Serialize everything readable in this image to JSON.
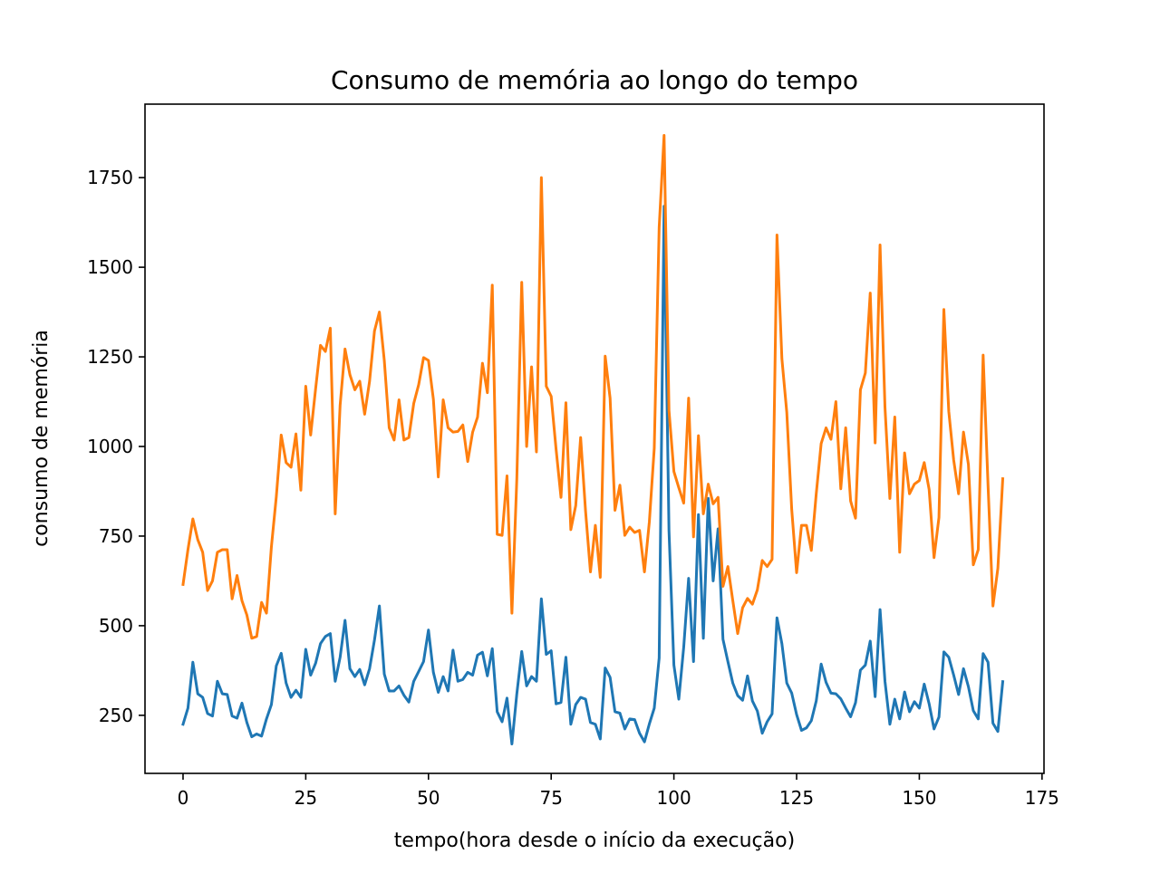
{
  "chart_data": {
    "type": "line",
    "title": "Consumo de memória ao longo do tempo",
    "xlabel": "tempo(hora desde o início da execução)",
    "ylabel": "consumo de memória",
    "xlim": [
      -7.75,
      175.4
    ],
    "ylim": [
      88,
      1955
    ],
    "xticks": [
      0,
      25,
      50,
      75,
      100,
      125,
      150,
      175
    ],
    "yticks": [
      250,
      500,
      750,
      1000,
      1250,
      1500,
      1750
    ],
    "grid": false,
    "legend": "none",
    "series": [
      {
        "color": "#1f77b4",
        "x": [
          0,
          1,
          2,
          3,
          4,
          5,
          6,
          7,
          8,
          9,
          10,
          11,
          12,
          13,
          14,
          15,
          16,
          17,
          18,
          19,
          20,
          21,
          22,
          23,
          24,
          25,
          26,
          27,
          28,
          29,
          30,
          31,
          32,
          33,
          34,
          35,
          36,
          37,
          38,
          39,
          40,
          41,
          42,
          43,
          44,
          45,
          46,
          47,
          48,
          49,
          50,
          51,
          52,
          53,
          54,
          55,
          56,
          57,
          58,
          59,
          60,
          61,
          62,
          63,
          64,
          65,
          66,
          67,
          68,
          69,
          70,
          71,
          72,
          73,
          74,
          75,
          76,
          77,
          78,
          79,
          80,
          81,
          82,
          83,
          84,
          85,
          86,
          87,
          88,
          89,
          90,
          91,
          92,
          93,
          94,
          95,
          96,
          97,
          98,
          99,
          100,
          101,
          102,
          103,
          104,
          105,
          106,
          107,
          108,
          109,
          110,
          111,
          112,
          113,
          114,
          115,
          116,
          117,
          118,
          119,
          120,
          121,
          122,
          123,
          124,
          125,
          126,
          127,
          128,
          129,
          130,
          131,
          132,
          133,
          134,
          135,
          136,
          137,
          138,
          139,
          140,
          141,
          142,
          143,
          144,
          145,
          146,
          147,
          148,
          149,
          150,
          151,
          152,
          153,
          154,
          155,
          156,
          157,
          158,
          159,
          160,
          161,
          162,
          163,
          164,
          165,
          166,
          167
        ],
        "y": [
          225,
          270,
          398,
          310,
          300,
          255,
          248,
          345,
          310,
          308,
          248,
          242,
          284,
          230,
          190,
          198,
          192,
          240,
          280,
          388,
          423,
          340,
          300,
          320,
          300,
          434,
          362,
          395,
          450,
          470,
          478,
          345,
          412,
          515,
          380,
          358,
          378,
          335,
          380,
          460,
          555,
          365,
          318,
          318,
          332,
          306,
          287,
          345,
          372,
          400,
          488,
          370,
          314,
          358,
          318,
          432,
          345,
          350,
          370,
          362,
          418,
          426,
          360,
          436,
          260,
          232,
          298,
          170,
          310,
          428,
          332,
          358,
          345,
          575,
          420,
          430,
          282,
          286,
          412,
          225,
          280,
          300,
          295,
          230,
          225,
          184,
          382,
          356,
          260,
          256,
          212,
          240,
          238,
          200,
          176,
          226,
          270,
          410,
          1670,
          765,
          390,
          295,
          440,
          632,
          400,
          810,
          465,
          855,
          625,
          770,
          462,
          400,
          340,
          305,
          292,
          360,
          290,
          262,
          200,
          232,
          254,
          522,
          450,
          340,
          312,
          252,
          208,
          215,
          235,
          290,
          393,
          342,
          312,
          310,
          296,
          270,
          246,
          285,
          376,
          390,
          457,
          302,
          545,
          345,
          225,
          295,
          240,
          315,
          260,
          288,
          270,
          337,
          282,
          212,
          245,
          427,
          412,
          362,
          308,
          380,
          330,
          263,
          240,
          422,
          398,
          228,
          205,
          344
        ]
      },
      {
        "color": "#ff7f0e",
        "x": [
          0,
          1,
          2,
          3,
          4,
          5,
          6,
          7,
          8,
          9,
          10,
          11,
          12,
          13,
          14,
          15,
          16,
          17,
          18,
          19,
          20,
          21,
          22,
          23,
          24,
          25,
          26,
          27,
          28,
          29,
          30,
          31,
          32,
          33,
          34,
          35,
          36,
          37,
          38,
          39,
          40,
          41,
          42,
          43,
          44,
          45,
          46,
          47,
          48,
          49,
          50,
          51,
          52,
          53,
          54,
          55,
          56,
          57,
          58,
          59,
          60,
          61,
          62,
          63,
          64,
          65,
          66,
          67,
          68,
          69,
          70,
          71,
          72,
          73,
          74,
          75,
          76,
          77,
          78,
          79,
          80,
          81,
          82,
          83,
          84,
          85,
          86,
          87,
          88,
          89,
          90,
          91,
          92,
          93,
          94,
          95,
          96,
          97,
          98,
          99,
          100,
          101,
          102,
          103,
          104,
          105,
          106,
          107,
          108,
          109,
          110,
          111,
          112,
          113,
          114,
          115,
          116,
          117,
          118,
          119,
          120,
          121,
          122,
          123,
          124,
          125,
          126,
          127,
          128,
          129,
          130,
          131,
          132,
          133,
          134,
          135,
          136,
          137,
          138,
          139,
          140,
          141,
          142,
          143,
          144,
          145,
          146,
          147,
          148,
          149,
          150,
          151,
          152,
          153,
          154,
          155,
          156,
          157,
          158,
          159,
          160,
          161,
          162,
          163,
          164,
          165,
          166,
          167
        ],
        "y": [
          615,
          712,
          798,
          740,
          705,
          598,
          625,
          705,
          712,
          712,
          575,
          640,
          570,
          530,
          465,
          470,
          565,
          535,
          720,
          860,
          1032,
          955,
          942,
          1035,
          878,
          1168,
          1032,
          1160,
          1282,
          1265,
          1330,
          812,
          1115,
          1272,
          1200,
          1158,
          1182,
          1090,
          1182,
          1322,
          1375,
          1240,
          1052,
          1018,
          1130,
          1018,
          1025,
          1120,
          1172,
          1248,
          1240,
          1132,
          915,
          1130,
          1052,
          1040,
          1042,
          1060,
          958,
          1040,
          1082,
          1232,
          1150,
          1450,
          755,
          752,
          918,
          535,
          910,
          1458,
          1000,
          1222,
          985,
          1750,
          1168,
          1140,
          992,
          858,
          1122,
          768,
          835,
          1025,
          820,
          650,
          780,
          635,
          1252,
          1135,
          822,
          892,
          752,
          775,
          760,
          766,
          650,
          790,
          995,
          1612,
          1868,
          1100,
          930,
          885,
          842,
          1135,
          748,
          1030,
          812,
          895,
          840,
          858,
          610,
          665,
          570,
          478,
          550,
          576,
          560,
          600,
          682,
          665,
          685,
          1590,
          1245,
          1095,
          825,
          648,
          780,
          780,
          710,
          868,
          1008,
          1052,
          1020,
          1125,
          882,
          1052,
          848,
          800,
          1158,
          1205,
          1428,
          1010,
          1562,
          1110,
          855,
          1082,
          705,
          982,
          868,
          895,
          905,
          955,
          880,
          690,
          802,
          1382,
          1098,
          962,
          868,
          1040,
          950,
          670,
          712,
          1255,
          892,
          555,
          660,
          910
        ]
      }
    ]
  }
}
